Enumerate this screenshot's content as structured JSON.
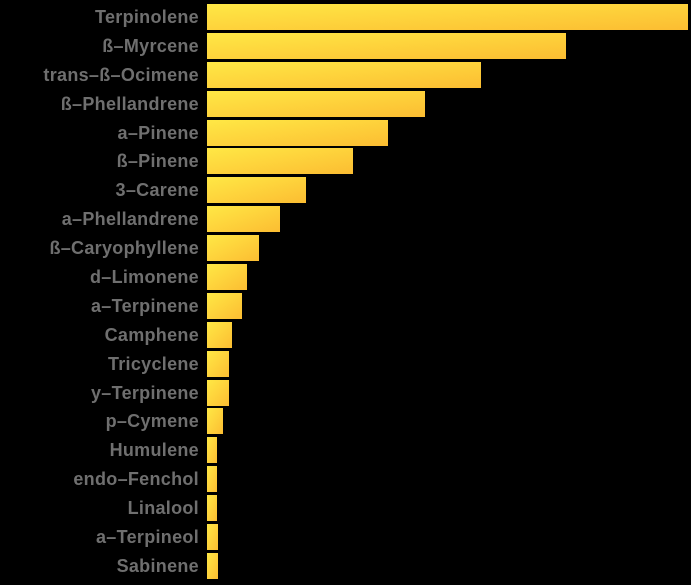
{
  "chart_data": {
    "type": "bar",
    "orientation": "horizontal",
    "title": "",
    "xlabel": "",
    "ylabel": "",
    "legend": false,
    "gridlines": false,
    "value_axis_visible": false,
    "value_unit": "relative bar length, percent of longest bar (no axis labels shown)",
    "xlim": [
      0,
      100
    ],
    "categories": [
      "Terpinolene",
      "ß–Myrcene",
      "trans–ß–Ocimene",
      "ß–Phellandrene",
      "a–Pinene",
      "ß–Pinene",
      "3–Carene",
      "a–Phellandrene",
      "ß–Caryophyllene",
      "d–Limonene",
      "a–Terpinene",
      "Camphene",
      "Tricyclene",
      "y–Terpinene",
      "p–Cymene",
      "Humulene",
      "endo–Fenchol",
      "Linalool",
      "a–Terpineol",
      "Sabinene"
    ],
    "values": [
      100,
      74.6,
      57.0,
      45.3,
      37.6,
      30.4,
      20.6,
      15.2,
      10.8,
      8.3,
      7.3,
      5.2,
      4.6,
      4.6,
      3.3,
      2.1,
      2.1,
      2.1,
      2.3,
      2.3
    ],
    "colors": {
      "bar_gradient_start": "#FFE845",
      "bar_gradient_end": "#FCBD32",
      "label_text": "#6F6F6F",
      "background": "#000000"
    }
  }
}
